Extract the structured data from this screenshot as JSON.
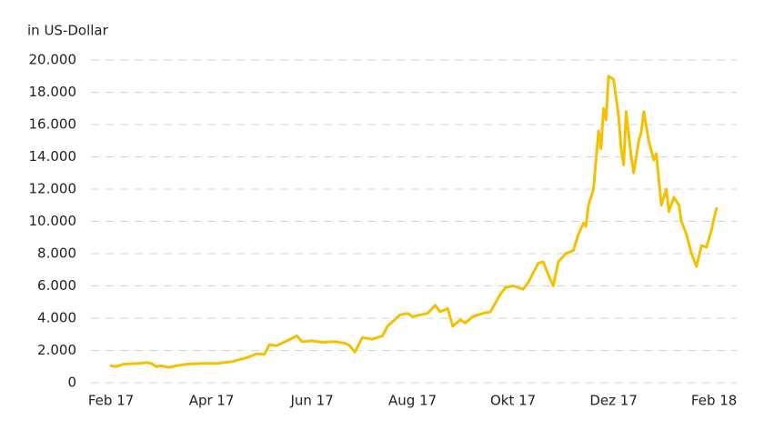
{
  "chart_data": {
    "type": "line",
    "y_label": "in US-Dollar",
    "color": "#f5c000",
    "grid": true,
    "xlim": [
      -0.4,
      12.45
    ],
    "ylim": [
      0,
      20000
    ],
    "xticks": [
      {
        "value": 0,
        "label": "Feb 17"
      },
      {
        "value": 2,
        "label": "Apr 17"
      },
      {
        "value": 4,
        "label": "Jun 17"
      },
      {
        "value": 6,
        "label": "Aug 17"
      },
      {
        "value": 8,
        "label": "Okt 17"
      },
      {
        "value": 10,
        "label": "Dez 17"
      },
      {
        "value": 12,
        "label": "Feb 18"
      }
    ],
    "yticks": [
      0,
      {
        "value": 2000,
        "label": "2.000"
      },
      {
        "value": 4000,
        "label": "4.000"
      },
      {
        "value": 6000,
        "label": "6.000"
      },
      {
        "value": 8000,
        "label": "8.000"
      },
      {
        "value": 10000,
        "label": "10.000"
      },
      {
        "value": 12000,
        "label": "12.000"
      },
      {
        "value": 14000,
        "label": "14.000"
      },
      {
        "value": 16000,
        "label": "16.000"
      },
      {
        "value": 18000,
        "label": "18.000"
      },
      {
        "value": 20000,
        "label": "20.000"
      }
    ],
    "x": [
      0,
      0.1,
      0.25,
      0.4,
      0.55,
      0.7,
      0.8,
      0.9,
      1.0,
      1.15,
      1.3,
      1.5,
      1.8,
      2.1,
      2.4,
      2.7,
      2.9,
      3.05,
      3.15,
      3.3,
      3.5,
      3.7,
      3.8,
      4.0,
      4.2,
      4.45,
      4.65,
      4.75,
      4.85,
      5.0,
      5.2,
      5.4,
      5.5,
      5.75,
      5.9,
      6.0,
      6.3,
      6.45,
      6.55,
      6.7,
      6.8,
      6.95,
      7.05,
      7.2,
      7.4,
      7.55,
      7.75,
      7.85,
      8.0,
      8.2,
      8.3,
      8.5,
      8.6,
      8.7,
      8.8,
      8.9,
      9.05,
      9.2,
      9.3,
      9.4,
      9.45,
      9.5,
      9.55,
      9.6,
      9.7,
      9.75,
      9.8,
      9.85,
      9.9,
      10.0,
      10.1,
      10.15,
      10.2,
      10.25,
      10.35,
      10.4,
      10.5,
      10.55,
      10.6,
      10.7,
      10.8,
      10.85,
      10.95,
      11.05,
      11.1,
      11.2,
      11.3,
      11.35,
      11.45,
      11.55,
      11.65,
      11.75,
      11.85,
      11.95,
      12.0,
      12.05
    ],
    "values": [
      1050,
      1000,
      1150,
      1180,
      1200,
      1250,
      1200,
      1000,
      1050,
      950,
      1050,
      1150,
      1200,
      1200,
      1300,
      1550,
      1800,
      1750,
      2350,
      2300,
      2600,
      2900,
      2550,
      2600,
      2500,
      2550,
      2450,
      2300,
      1900,
      2800,
      2700,
      2900,
      3500,
      4200,
      4300,
      4100,
      4300,
      4800,
      4400,
      4600,
      3500,
      3900,
      3700,
      4100,
      4300,
      4400,
      5500,
      5900,
      6000,
      5800,
      6200,
      7400,
      7500,
      6700,
      6000,
      7500,
      8000,
      8200,
      9200,
      9900,
      9700,
      11000,
      11500,
      12000,
      15600,
      14500,
      17000,
      16300,
      19000,
      18800,
      16500,
      14500,
      13500,
      16800,
      14000,
      13000,
      15000,
      15500,
      16800,
      15000,
      13800,
      14200,
      11000,
      12000,
      10600,
      11500,
      11000,
      10000,
      9200,
      8000,
      7200,
      8500,
      8400,
      9500,
      10200,
      10800
    ]
  }
}
